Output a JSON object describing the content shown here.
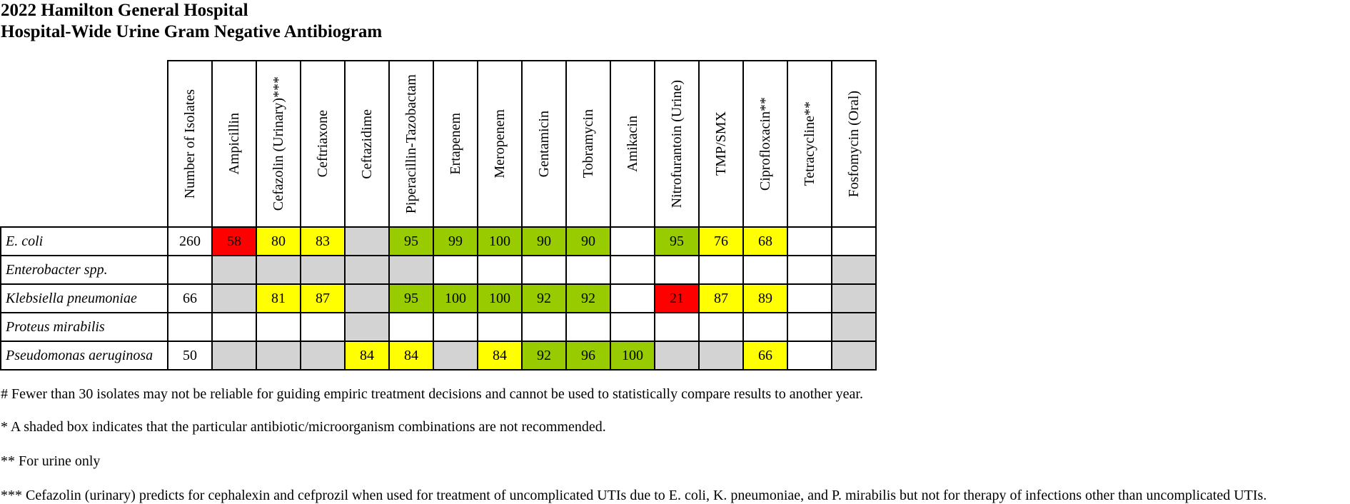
{
  "title_line1": "2022 Hamilton General Hospital",
  "title_line2": "Hospital-Wide Urine Gram Negative Antibiogram",
  "colors": {
    "red": "#ff0000",
    "yellow": "#ffff00",
    "green": "#99cc00",
    "grey": "#d3d3d3",
    "white": "#ffffff"
  },
  "columns": [
    "Number of Isolates",
    "Ampicillin",
    "Cefazolin (Urinary)***",
    "Ceftriaxone",
    "Ceftazidime",
    "Piperacillin-Tazobactam",
    "Ertapenem",
    "Meropenem",
    "Gentamicin",
    "Tobramycin",
    "Amikacin",
    "Nitrofurantoin (Urine)",
    "TMP/SMX",
    "Ciprofloxacin**",
    "Tetracycline**",
    "Fosfomycin (Oral)"
  ],
  "rows": [
    {
      "organism": "E. coli",
      "isolates": "260",
      "cells": [
        {
          "value": "58",
          "color": "red"
        },
        {
          "value": "80",
          "color": "yellow"
        },
        {
          "value": "83",
          "color": "yellow"
        },
        {
          "value": "",
          "color": "grey"
        },
        {
          "value": "95",
          "color": "green"
        },
        {
          "value": "99",
          "color": "green"
        },
        {
          "value": "100",
          "color": "green"
        },
        {
          "value": "90",
          "color": "green"
        },
        {
          "value": "90",
          "color": "green"
        },
        {
          "value": "",
          "color": "white"
        },
        {
          "value": "95",
          "color": "green"
        },
        {
          "value": "76",
          "color": "yellow"
        },
        {
          "value": "68",
          "color": "yellow"
        },
        {
          "value": "",
          "color": "white"
        },
        {
          "value": "",
          "color": "white"
        }
      ]
    },
    {
      "organism": "Enterobacter spp.",
      "isolates": "",
      "cells": [
        {
          "value": "",
          "color": "grey"
        },
        {
          "value": "",
          "color": "grey"
        },
        {
          "value": "",
          "color": "grey"
        },
        {
          "value": "",
          "color": "grey"
        },
        {
          "value": "",
          "color": "grey"
        },
        {
          "value": "",
          "color": "white"
        },
        {
          "value": "",
          "color": "white"
        },
        {
          "value": "",
          "color": "white"
        },
        {
          "value": "",
          "color": "white"
        },
        {
          "value": "",
          "color": "white"
        },
        {
          "value": "",
          "color": "white"
        },
        {
          "value": "",
          "color": "white"
        },
        {
          "value": "",
          "color": "white"
        },
        {
          "value": "",
          "color": "white"
        },
        {
          "value": "",
          "color": "grey"
        }
      ]
    },
    {
      "organism": "Klebsiella pneumoniae",
      "isolates": "66",
      "cells": [
        {
          "value": "",
          "color": "grey"
        },
        {
          "value": "81",
          "color": "yellow"
        },
        {
          "value": "87",
          "color": "yellow"
        },
        {
          "value": "",
          "color": "grey"
        },
        {
          "value": "95",
          "color": "green"
        },
        {
          "value": "100",
          "color": "green"
        },
        {
          "value": "100",
          "color": "green"
        },
        {
          "value": "92",
          "color": "green"
        },
        {
          "value": "92",
          "color": "green"
        },
        {
          "value": "",
          "color": "white"
        },
        {
          "value": "21",
          "color": "red"
        },
        {
          "value": "87",
          "color": "yellow"
        },
        {
          "value": "89",
          "color": "yellow"
        },
        {
          "value": "",
          "color": "white"
        },
        {
          "value": "",
          "color": "grey"
        }
      ]
    },
    {
      "organism": "Proteus mirabilis",
      "isolates": "",
      "cells": [
        {
          "value": "",
          "color": "white"
        },
        {
          "value": "",
          "color": "white"
        },
        {
          "value": "",
          "color": "white"
        },
        {
          "value": "",
          "color": "grey"
        },
        {
          "value": "",
          "color": "white"
        },
        {
          "value": "",
          "color": "white"
        },
        {
          "value": "",
          "color": "white"
        },
        {
          "value": "",
          "color": "white"
        },
        {
          "value": "",
          "color": "white"
        },
        {
          "value": "",
          "color": "white"
        },
        {
          "value": "",
          "color": "white"
        },
        {
          "value": "",
          "color": "white"
        },
        {
          "value": "",
          "color": "white"
        },
        {
          "value": "",
          "color": "white"
        },
        {
          "value": "",
          "color": "grey"
        }
      ]
    },
    {
      "organism": "Pseudomonas aeruginosa",
      "isolates": "50",
      "cells": [
        {
          "value": "",
          "color": "grey"
        },
        {
          "value": "",
          "color": "grey"
        },
        {
          "value": "",
          "color": "grey"
        },
        {
          "value": "84",
          "color": "yellow"
        },
        {
          "value": "84",
          "color": "yellow"
        },
        {
          "value": "",
          "color": "grey"
        },
        {
          "value": "84",
          "color": "yellow"
        },
        {
          "value": "92",
          "color": "green"
        },
        {
          "value": "96",
          "color": "green"
        },
        {
          "value": "100",
          "color": "green"
        },
        {
          "value": "",
          "color": "grey"
        },
        {
          "value": "",
          "color": "grey"
        },
        {
          "value": "66",
          "color": "yellow"
        },
        {
          "value": "",
          "color": "white"
        },
        {
          "value": "",
          "color": "grey"
        }
      ]
    }
  ],
  "notes": [
    "# Fewer than 30 isolates may not be reliable for guiding empiric treatment decisions and cannot be used to statistically compare results to another year.",
    "* A shaded box indicates that the particular antibiotic/microorganism combinations are not recommended.",
    "** For urine only",
    "*** Cefazolin (urinary) predicts for cephalexin and cefprozil when used for treatment of uncomplicated UTIs due to E. coli, K. pneumoniae, and P. mirabilis but not for therapy of infections other than uncomplicated UTIs."
  ]
}
